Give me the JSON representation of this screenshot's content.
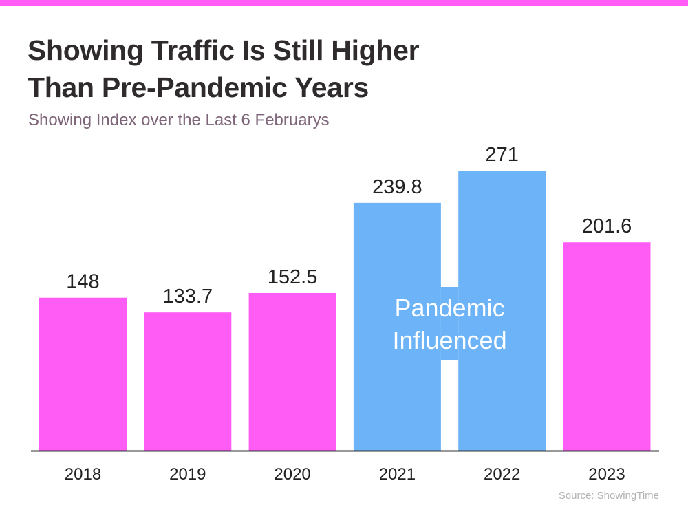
{
  "title_lines": [
    "Showing Traffic Is Still Higher",
    "Than Pre-Pandemic Years"
  ],
  "subtitle": "Showing Index over the Last 6 Februarys",
  "source": "Source: ShowingTime",
  "colors": {
    "accent": "#ff5cf5",
    "pandemic": "#6cb3f7",
    "axis": "#333333",
    "title": "#2f2a2c",
    "subtitle": "#7d6478",
    "source": "#b3b3b3"
  },
  "chart_data": {
    "type": "bar",
    "title": "Showing Traffic Is Still Higher Than Pre-Pandemic Years",
    "subtitle": "Showing Index over the Last 6 Februarys",
    "categories": [
      "2018",
      "2019",
      "2020",
      "2021",
      "2022",
      "2023"
    ],
    "values": [
      148,
      133.7,
      152.5,
      239.8,
      271,
      201.6
    ],
    "value_labels": [
      "148",
      "133.7",
      "152.5",
      "239.8",
      "271",
      "201.6"
    ],
    "highlighted": [
      false,
      false,
      false,
      true,
      true,
      false
    ],
    "annotation": {
      "lines": [
        "Pandemic",
        "Influenced"
      ],
      "applies_to": [
        "2021",
        "2022"
      ]
    },
    "ylim": [
      0,
      271
    ],
    "grid": false,
    "legend": "none",
    "xlabel": "",
    "ylabel": ""
  }
}
